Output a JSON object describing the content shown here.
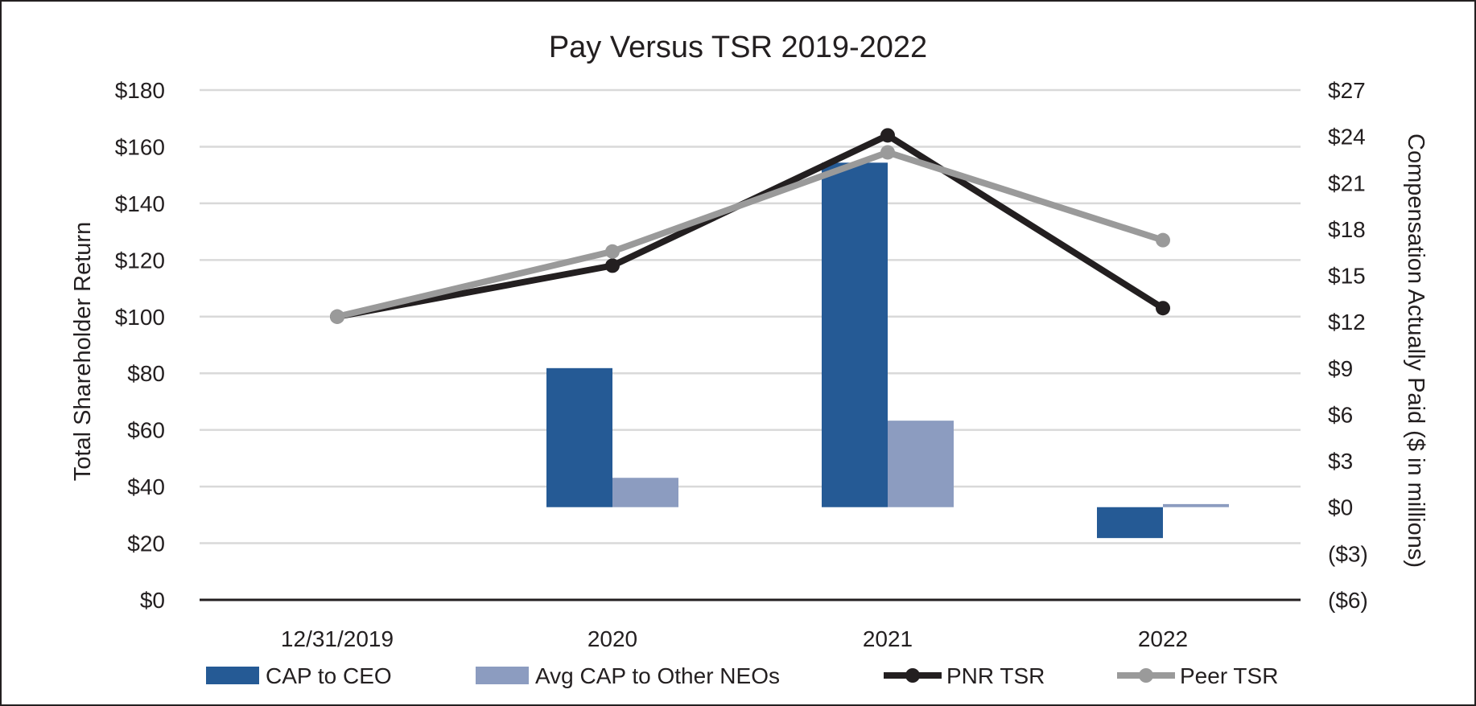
{
  "chart_data": {
    "type": "bar",
    "title": "Pay Versus TSR 2019-2022",
    "categories": [
      "12/31/2019",
      "2020",
      "2021",
      "2022"
    ],
    "y_left": {
      "label": "Total Shareholder Return",
      "range": [
        0,
        180
      ],
      "ticks": [
        0,
        20,
        40,
        60,
        80,
        100,
        120,
        140,
        160,
        180
      ],
      "tick_labels": [
        "$0",
        "$20",
        "$40",
        "$60",
        "$80",
        "$100",
        "$120",
        "$140",
        "$160",
        "$180"
      ]
    },
    "y_right": {
      "label": "Compensation Actually Paid ($ in millions)",
      "range": [
        -6,
        27
      ],
      "ticks": [
        -6,
        -3,
        0,
        3,
        6,
        9,
        12,
        15,
        18,
        21,
        24,
        27
      ],
      "tick_labels": [
        "($6)",
        "($3)",
        "$0",
        "$3",
        "$6",
        "$9",
        "$12",
        "$15",
        "$18",
        "$21",
        "$24",
        "$27"
      ]
    },
    "grid": true,
    "legend_position": "bottom",
    "bar_series": [
      {
        "name": "CAP to CEO",
        "axis": "right",
        "color": "#255a95",
        "values": [
          null,
          9.0,
          22.3,
          -2.0
        ]
      },
      {
        "name": "Avg CAP to Other NEOs",
        "axis": "right",
        "color": "#8c9cc0",
        "values": [
          null,
          1.9,
          5.6,
          0.2
        ]
      }
    ],
    "line_series": [
      {
        "name": "PNR TSR",
        "axis": "left",
        "color": "#231f20",
        "values": [
          100,
          118,
          164,
          103
        ]
      },
      {
        "name": "Peer TSR",
        "axis": "left",
        "color": "#9a9a9a",
        "values": [
          100,
          123,
          158,
          127
        ]
      }
    ]
  }
}
